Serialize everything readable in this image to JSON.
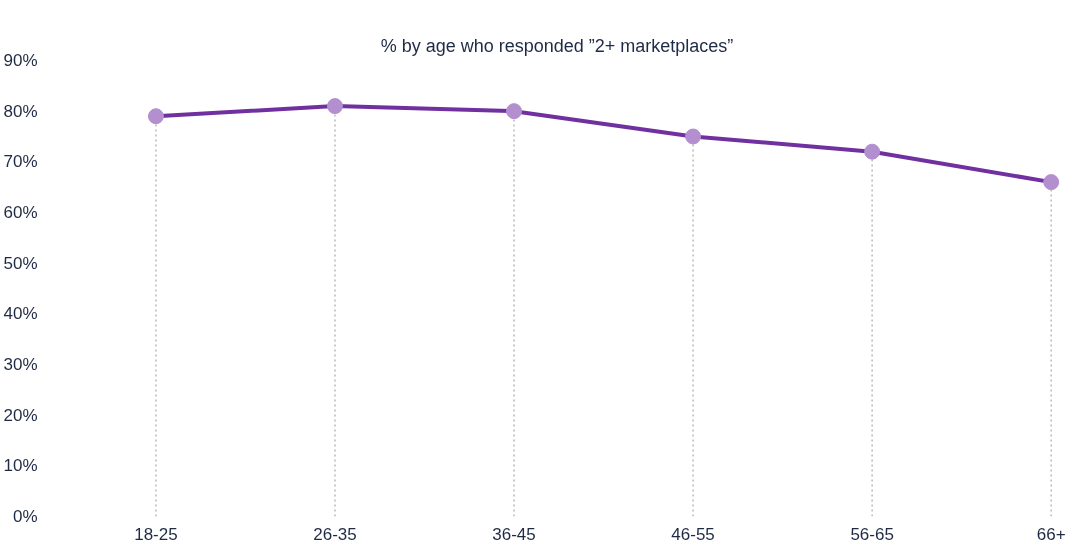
{
  "chart_data": {
    "type": "line",
    "title": "% by age who responded ”2+ marketplaces”",
    "categories": [
      "18-25",
      "26-35",
      "36-45",
      "46-55",
      "56-65",
      "66+"
    ],
    "series": [
      {
        "color": "#7030a0",
        "values": [
          79,
          81,
          80,
          75,
          72,
          66
        ],
        "marker": "none",
        "line_style": "solid"
      },
      {
        "type": "scatter",
        "color": "#b48fd0",
        "values": [
          79,
          81,
          80,
          75,
          72,
          66
        ],
        "marker": "circle"
      }
    ],
    "ylim": [
      0,
      90
    ],
    "yticks": [
      {
        "value": 0,
        "label": "0%"
      },
      {
        "value": 10,
        "label": "10%"
      },
      {
        "value": 20,
        "label": "20%"
      },
      {
        "value": 30,
        "label": "30%"
      },
      {
        "value": 40,
        "label": "40%"
      },
      {
        "value": 50,
        "label": "50%"
      },
      {
        "value": 60,
        "label": "60%"
      },
      {
        "value": 70,
        "label": "70%"
      },
      {
        "value": 80,
        "label": "80%"
      },
      {
        "value": 90,
        "label": "90%"
      }
    ],
    "grid": "x"
  }
}
